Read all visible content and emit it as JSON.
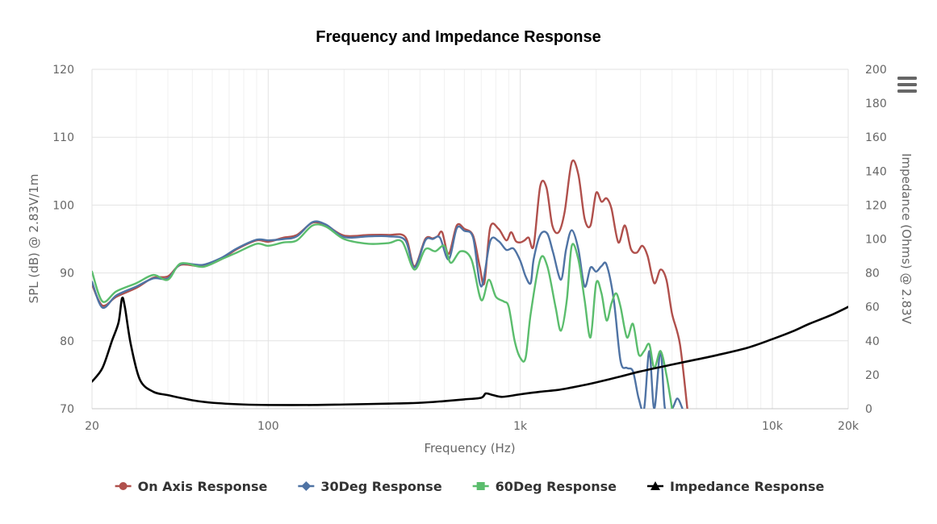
{
  "chart_data": {
    "type": "line",
    "title": "Frequency and Impedance Response",
    "xlabel": "Frequency (Hz)",
    "ylabel": "SPL (dB) @ 2.83V/1m",
    "y2label": "Impedance (Ohms) @ 2.83V",
    "x_scale": "log",
    "xlim": [
      20,
      20000
    ],
    "ylim": [
      70,
      120
    ],
    "y2lim": [
      0,
      200
    ],
    "x_ticks": [
      {
        "value": 20,
        "label": "20"
      },
      {
        "value": 100,
        "label": "100"
      },
      {
        "value": 1000,
        "label": "1k"
      },
      {
        "value": 10000,
        "label": "10k"
      },
      {
        "value": 20000,
        "label": "20k"
      }
    ],
    "y_ticks": [
      "70",
      "80",
      "90",
      "100",
      "110",
      "120"
    ],
    "y2_ticks": [
      "0",
      "20",
      "40",
      "60",
      "80",
      "100",
      "120",
      "140",
      "160",
      "180",
      "200"
    ],
    "grid": true,
    "legend_position": "bottom",
    "series": [
      {
        "name": "On Axis Response",
        "color": "#b0504c",
        "marker": "circle",
        "axis": "left",
        "points": [
          [
            20,
            88.3
          ],
          [
            22,
            85.2
          ],
          [
            25,
            86.5
          ],
          [
            30,
            87.8
          ],
          [
            35,
            89.3
          ],
          [
            40,
            89.5
          ],
          [
            45,
            91.2
          ],
          [
            55,
            91.0
          ],
          [
            65,
            92.0
          ],
          [
            75,
            93.5
          ],
          [
            90,
            94.8
          ],
          [
            100,
            94.6
          ],
          [
            115,
            95.2
          ],
          [
            130,
            95.6
          ],
          [
            150,
            97.4
          ],
          [
            170,
            97.0
          ],
          [
            200,
            95.5
          ],
          [
            250,
            95.6
          ],
          [
            300,
            95.6
          ],
          [
            350,
            95.3
          ],
          [
            380,
            91.0
          ],
          [
            420,
            95.0
          ],
          [
            450,
            95.1
          ],
          [
            470,
            95.4
          ],
          [
            490,
            96.0
          ],
          [
            520,
            92.8
          ],
          [
            560,
            97.0
          ],
          [
            600,
            96.5
          ],
          [
            650,
            95.5
          ],
          [
            690,
            91.0
          ],
          [
            720,
            88.5
          ],
          [
            760,
            96.7
          ],
          [
            820,
            96.5
          ],
          [
            880,
            94.8
          ],
          [
            920,
            96.0
          ],
          [
            960,
            94.7
          ],
          [
            1000,
            94.5
          ],
          [
            1040,
            94.8
          ],
          [
            1080,
            95.2
          ],
          [
            1130,
            94.0
          ],
          [
            1200,
            102.8
          ],
          [
            1270,
            102.6
          ],
          [
            1340,
            97.0
          ],
          [
            1420,
            96.0
          ],
          [
            1500,
            99.0
          ],
          [
            1600,
            106.3
          ],
          [
            1700,
            104.5
          ],
          [
            1800,
            98.0
          ],
          [
            1900,
            97.0
          ],
          [
            2000,
            101.8
          ],
          [
            2100,
            100.5
          ],
          [
            2200,
            101.0
          ],
          [
            2300,
            99.5
          ],
          [
            2450,
            94.5
          ],
          [
            2600,
            97.0
          ],
          [
            2750,
            93.5
          ],
          [
            2900,
            93.0
          ],
          [
            3050,
            94.0
          ],
          [
            3200,
            92.5
          ],
          [
            3400,
            88.5
          ],
          [
            3600,
            90.5
          ],
          [
            3800,
            89.0
          ],
          [
            4000,
            84.0
          ],
          [
            4300,
            79.5
          ],
          [
            4600,
            70.0
          ]
        ]
      },
      {
        "name": "30Deg Response",
        "color": "#4f73a4",
        "marker": "diamond",
        "axis": "left",
        "points": [
          [
            20,
            88.7
          ],
          [
            22,
            84.9
          ],
          [
            25,
            86.7
          ],
          [
            30,
            88.0
          ],
          [
            35,
            89.2
          ],
          [
            40,
            89.2
          ],
          [
            45,
            91.3
          ],
          [
            55,
            91.2
          ],
          [
            65,
            92.2
          ],
          [
            75,
            93.6
          ],
          [
            90,
            94.9
          ],
          [
            100,
            94.8
          ],
          [
            115,
            95.0
          ],
          [
            130,
            95.4
          ],
          [
            150,
            97.5
          ],
          [
            170,
            97.1
          ],
          [
            200,
            95.3
          ],
          [
            250,
            95.4
          ],
          [
            300,
            95.4
          ],
          [
            350,
            94.8
          ],
          [
            380,
            90.8
          ],
          [
            420,
            94.8
          ],
          [
            450,
            95.0
          ],
          [
            480,
            95.2
          ],
          [
            520,
            92.0
          ],
          [
            560,
            96.6
          ],
          [
            600,
            96.2
          ],
          [
            650,
            95.2
          ],
          [
            700,
            88.0
          ],
          [
            760,
            94.7
          ],
          [
            820,
            94.7
          ],
          [
            880,
            93.4
          ],
          [
            940,
            93.6
          ],
          [
            1000,
            91.8
          ],
          [
            1050,
            89.5
          ],
          [
            1100,
            88.5
          ],
          [
            1130,
            92.0
          ],
          [
            1200,
            95.6
          ],
          [
            1280,
            95.8
          ],
          [
            1350,
            93.0
          ],
          [
            1450,
            89.0
          ],
          [
            1520,
            93.5
          ],
          [
            1600,
            96.3
          ],
          [
            1700,
            93.5
          ],
          [
            1800,
            88.0
          ],
          [
            1900,
            90.8
          ],
          [
            2000,
            90.2
          ],
          [
            2100,
            91.0
          ],
          [
            2200,
            91.2
          ],
          [
            2350,
            86.0
          ],
          [
            2500,
            77.0
          ],
          [
            2650,
            76.0
          ],
          [
            2800,
            75.5
          ],
          [
            2950,
            71.5
          ],
          [
            3100,
            70.0
          ],
          [
            3250,
            78.5
          ],
          [
            3400,
            70.0
          ],
          [
            3600,
            78.5
          ],
          [
            3750,
            70.0
          ],
          [
            4000,
            70.0
          ],
          [
            4200,
            71.5
          ],
          [
            4400,
            70.0
          ]
        ]
      },
      {
        "name": "60Deg Response",
        "color": "#5bbd6d",
        "marker": "square",
        "axis": "left",
        "points": [
          [
            20,
            90.2
          ],
          [
            22,
            85.8
          ],
          [
            25,
            87.3
          ],
          [
            30,
            88.5
          ],
          [
            35,
            89.7
          ],
          [
            40,
            89.0
          ],
          [
            45,
            91.4
          ],
          [
            55,
            90.9
          ],
          [
            65,
            92.0
          ],
          [
            75,
            93.0
          ],
          [
            90,
            94.3
          ],
          [
            100,
            94.0
          ],
          [
            115,
            94.5
          ],
          [
            130,
            94.8
          ],
          [
            150,
            97.0
          ],
          [
            170,
            96.8
          ],
          [
            200,
            95.0
          ],
          [
            250,
            94.3
          ],
          [
            300,
            94.4
          ],
          [
            340,
            94.6
          ],
          [
            380,
            90.5
          ],
          [
            420,
            93.5
          ],
          [
            460,
            93.2
          ],
          [
            500,
            94.0
          ],
          [
            530,
            91.5
          ],
          [
            580,
            93.2
          ],
          [
            640,
            92.0
          ],
          [
            700,
            86.0
          ],
          [
            750,
            89.0
          ],
          [
            800,
            86.5
          ],
          [
            860,
            85.8
          ],
          [
            900,
            85.0
          ],
          [
            950,
            80.0
          ],
          [
            1000,
            77.5
          ],
          [
            1050,
            77.5
          ],
          [
            1100,
            84.0
          ],
          [
            1200,
            92.0
          ],
          [
            1280,
            91.0
          ],
          [
            1380,
            85.0
          ],
          [
            1450,
            81.5
          ],
          [
            1530,
            86.0
          ],
          [
            1600,
            94.0
          ],
          [
            1700,
            92.0
          ],
          [
            1800,
            86.0
          ],
          [
            1900,
            80.5
          ],
          [
            2000,
            88.5
          ],
          [
            2100,
            87.0
          ],
          [
            2200,
            83.0
          ],
          [
            2300,
            85.5
          ],
          [
            2400,
            87.0
          ],
          [
            2500,
            85.0
          ],
          [
            2650,
            80.5
          ],
          [
            2800,
            82.5
          ],
          [
            2950,
            78.0
          ],
          [
            3100,
            78.5
          ],
          [
            3250,
            79.5
          ],
          [
            3400,
            76.0
          ],
          [
            3600,
            78.5
          ],
          [
            3800,
            75.0
          ],
          [
            4000,
            70.0
          ]
        ]
      },
      {
        "name": "Impedance Response",
        "color": "#000000",
        "marker": "triangle",
        "axis": "right",
        "points": [
          [
            20,
            16.0
          ],
          [
            22,
            24.0
          ],
          [
            24,
            40.0
          ],
          [
            25.5,
            51.0
          ],
          [
            26.3,
            65.0
          ],
          [
            27,
            60.0
          ],
          [
            28.5,
            38.0
          ],
          [
            31,
            17.0
          ],
          [
            35,
            10.0
          ],
          [
            40,
            8.0
          ],
          [
            50,
            5.0
          ],
          [
            60,
            3.5
          ],
          [
            80,
            2.5
          ],
          [
            100,
            2.2
          ],
          [
            150,
            2.2
          ],
          [
            200,
            2.5
          ],
          [
            300,
            3.0
          ],
          [
            400,
            3.5
          ],
          [
            500,
            4.5
          ],
          [
            600,
            5.5
          ],
          [
            700,
            6.5
          ],
          [
            730,
            9.0
          ],
          [
            780,
            8.0
          ],
          [
            850,
            7.0
          ],
          [
            1000,
            8.5
          ],
          [
            1200,
            10.0
          ],
          [
            1400,
            11.0
          ],
          [
            1600,
            12.5
          ],
          [
            1800,
            14.0
          ],
          [
            2000,
            15.5
          ],
          [
            2500,
            19.0
          ],
          [
            3000,
            22.0
          ],
          [
            4000,
            26.0
          ],
          [
            5000,
            29.0
          ],
          [
            6000,
            31.5
          ],
          [
            8000,
            36.0
          ],
          [
            10000,
            41.0
          ],
          [
            12000,
            45.5
          ],
          [
            14000,
            50.0
          ],
          [
            17000,
            55.0
          ],
          [
            20000,
            60.0
          ]
        ]
      }
    ]
  }
}
